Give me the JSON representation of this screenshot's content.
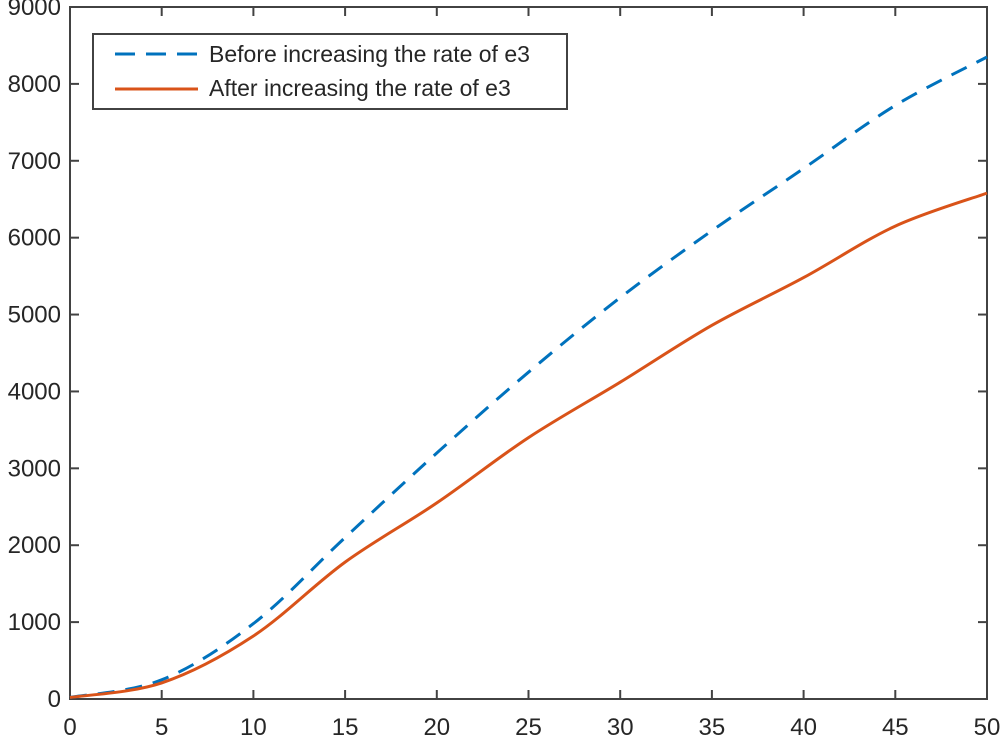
{
  "figure": {
    "background": "#ffffff",
    "axis_color": "#424242",
    "tick_label_color": "#262626",
    "tick_font_size": 24
  },
  "chart_data": {
    "type": "line",
    "title": "",
    "xlabel": "",
    "ylabel": "",
    "xlim": [
      0,
      50
    ],
    "ylim": [
      0,
      9000
    ],
    "x_ticks": [
      0,
      5,
      10,
      15,
      20,
      25,
      30,
      35,
      40,
      45,
      50
    ],
    "y_ticks": [
      0,
      1000,
      2000,
      3000,
      4000,
      5000,
      6000,
      7000,
      8000,
      9000
    ],
    "grid": false,
    "box": true,
    "legend_position": "top-left",
    "x": [
      0,
      5,
      10,
      15,
      20,
      25,
      30,
      35,
      40,
      45,
      50
    ],
    "series": [
      {
        "name": "Before increasing the rate of e3",
        "color": "#0072BD",
        "style": "dashed",
        "line_width": 3,
        "values": [
          20,
          250,
          980,
          2100,
          3200,
          4250,
          5220,
          6090,
          6900,
          7720,
          8350
        ]
      },
      {
        "name": "After increasing the rate of e3",
        "color": "#D95319",
        "style": "solid",
        "line_width": 3,
        "values": [
          20,
          210,
          820,
          1780,
          2550,
          3400,
          4120,
          4860,
          5480,
          6150,
          6580
        ]
      }
    ]
  }
}
